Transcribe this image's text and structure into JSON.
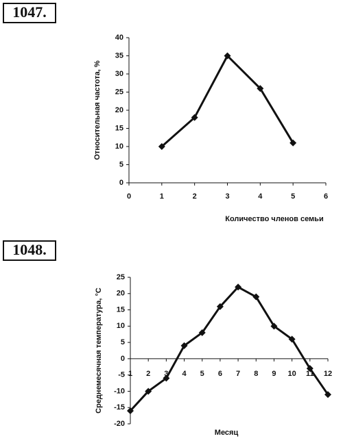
{
  "chart_data": [
    {
      "type": "line",
      "label": "1047.",
      "x": [
        1,
        2,
        3,
        4,
        5
      ],
      "values": [
        10,
        18,
        35,
        26,
        11
      ],
      "color": "#111111",
      "xlim": [
        0,
        6
      ],
      "xticks": [
        0,
        1,
        2,
        3,
        4,
        5,
        6
      ],
      "ylim": [
        0,
        40
      ],
      "yticks": [
        0,
        5,
        10,
        15,
        20,
        25,
        30,
        35,
        40
      ],
      "ylabel": "Относительная частота, %",
      "xlabel": "Количество членов семьи"
    },
    {
      "type": "line",
      "label": "1048.",
      "x": [
        1,
        2,
        3,
        4,
        5,
        6,
        7,
        8,
        9,
        10,
        11,
        12
      ],
      "values": [
        -16,
        -10,
        -6,
        4,
        8,
        16,
        22,
        19,
        10,
        6,
        -3,
        -11
      ],
      "color": "#111111",
      "xlim": [
        1,
        12
      ],
      "xticks": [
        1,
        2,
        3,
        4,
        5,
        6,
        7,
        8,
        9,
        10,
        11,
        12
      ],
      "ylim": [
        -20,
        25
      ],
      "yticks": [
        -20,
        -15,
        -10,
        -5,
        0,
        5,
        10,
        15,
        20,
        25
      ],
      "ylabel": "Среднемесячная температура, °С",
      "xlabel": "Месяц"
    }
  ]
}
